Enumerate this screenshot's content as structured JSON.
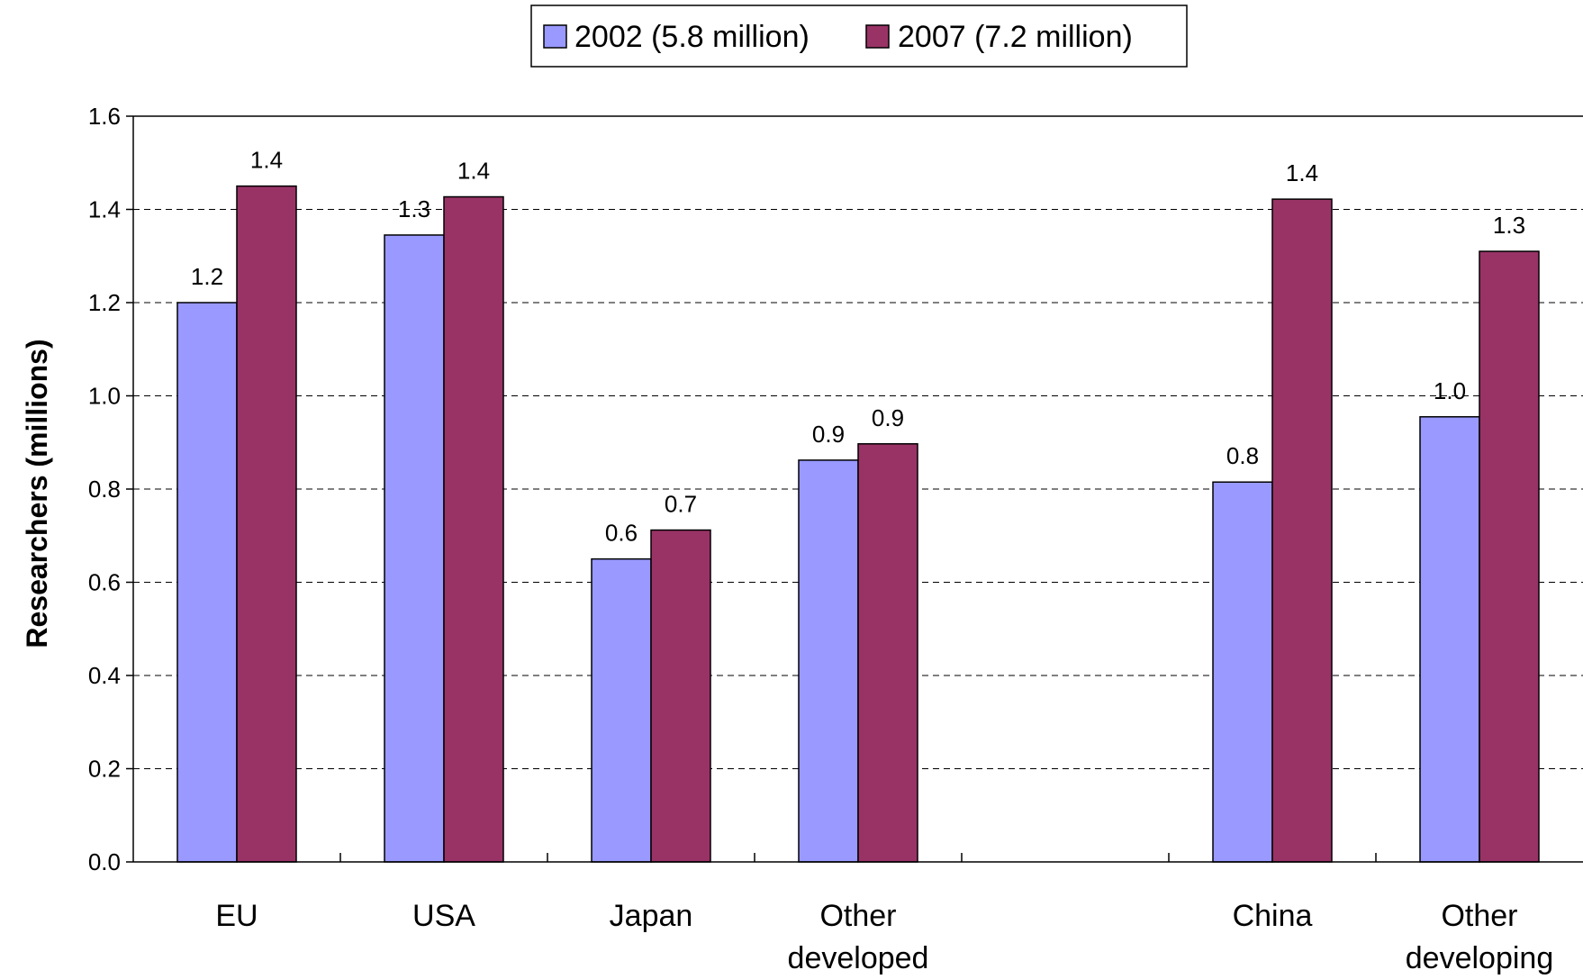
{
  "chart_data": {
    "type": "bar",
    "title": "",
    "xlabel": "",
    "ylabel": "Researchers (millions)",
    "ylim": [
      0,
      1.6
    ],
    "yticks": [
      "0.0",
      "0.2",
      "0.4",
      "0.6",
      "0.8",
      "1.0",
      "1.2",
      "1.4",
      "1.6"
    ],
    "grid": "horizontal dashed",
    "legend_position": "top-center",
    "categories": [
      {
        "line1": "EU",
        "line2": ""
      },
      {
        "line1": "USA",
        "line2": ""
      },
      {
        "line1": "Japan",
        "line2": ""
      },
      {
        "line1": "Other",
        "line2": "developed"
      },
      {
        "line1": "",
        "line2": ""
      },
      {
        "line1": "China",
        "line2": ""
      },
      {
        "line1": "Other",
        "line2": "developing"
      }
    ],
    "series": [
      {
        "name": "2002 (5.8 million)",
        "color": "#9999ff",
        "values": [
          1.2,
          1.345,
          0.65,
          0.862,
          null,
          0.815,
          0.955
        ],
        "labels": [
          "1.2",
          "1.3",
          "0.6",
          "0.9",
          "",
          "0.8",
          "1.0"
        ]
      },
      {
        "name": "2007 (7.2 million)",
        "color": "#993366",
        "values": [
          1.45,
          1.427,
          0.712,
          0.897,
          null,
          1.422,
          1.31
        ],
        "labels": [
          "1.4",
          "1.4",
          "0.7",
          "0.9",
          "",
          "1.4",
          "1.3"
        ]
      }
    ]
  }
}
